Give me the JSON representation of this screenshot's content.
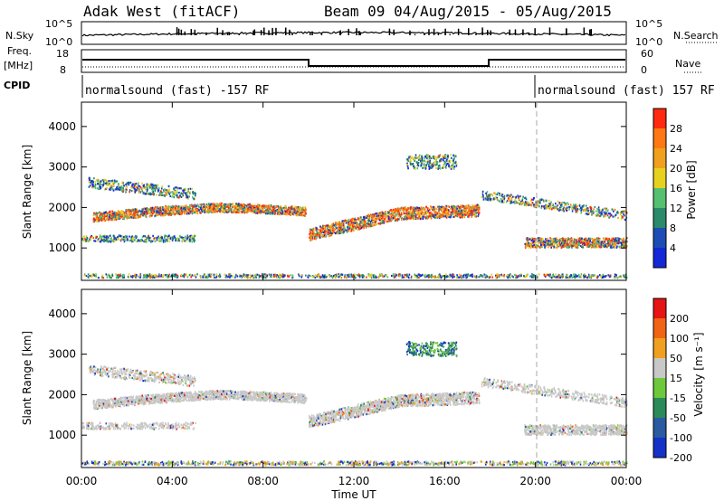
{
  "header": {
    "station": "Adak West (fitACF)",
    "beam_date": "Beam 09 04/Aug/2015 - 05/Aug/2015"
  },
  "nsky_panel": {
    "label": "N.Sky",
    "label_right": "N.Search",
    "left_ticks": [
      "10^5",
      "10^0"
    ],
    "right_ticks": [
      "10^5",
      "10^0"
    ]
  },
  "freq_panel": {
    "label_left": [
      "Freq.",
      "[MHz]"
    ],
    "label_right": "Nave",
    "left_ticks": [
      "18",
      "8"
    ],
    "right_ticks": [
      "60",
      "0"
    ]
  },
  "cpid_panel": {
    "label": "CPID",
    "programs": [
      "normalsound (fast) -157 RF",
      "normalsound (fast) 157 RF"
    ]
  },
  "x_axis": {
    "title": "Time UT",
    "ticks": [
      "00:00",
      "04:00",
      "08:00",
      "12:00",
      "16:00",
      "20:00",
      "00:00"
    ]
  },
  "chart_data": [
    {
      "type": "heatmap",
      "panel": "power",
      "ylabel": "Slant Range [km]",
      "yticks": [
        "1000",
        "2000",
        "3000",
        "4000"
      ],
      "ylim": [
        200,
        4600
      ],
      "xlim": [
        0,
        24
      ],
      "colorbar_label": "Power [dB]",
      "colorbar_ticks": [
        "4",
        "8",
        "12",
        "16",
        "20",
        "24",
        "28"
      ],
      "colorbar_colors": [
        "#1428d8",
        "#1e4cb4",
        "#2a8a6a",
        "#55c070",
        "#e6d21e",
        "#f0a01e",
        "#ff7814",
        "#ff2a10"
      ]
    },
    {
      "type": "heatmap",
      "panel": "velocity",
      "ylabel": "Slant Range [km]",
      "yticks": [
        "1000",
        "2000",
        "3000",
        "4000"
      ],
      "ylim": [
        200,
        4600
      ],
      "xlim": [
        0,
        24
      ],
      "colorbar_label": "Velocity [m s⁻¹]",
      "colorbar_ticks": [
        "200",
        "100",
        "50",
        "15",
        "-15",
        "-50",
        "-100",
        "-200"
      ],
      "colorbar_colors": [
        "#1432c8",
        "#2a5aa0",
        "#2a8a5a",
        "#6ec83c",
        "#c8c8c8",
        "#f0a01e",
        "#f06414",
        "#e61414"
      ]
    }
  ]
}
